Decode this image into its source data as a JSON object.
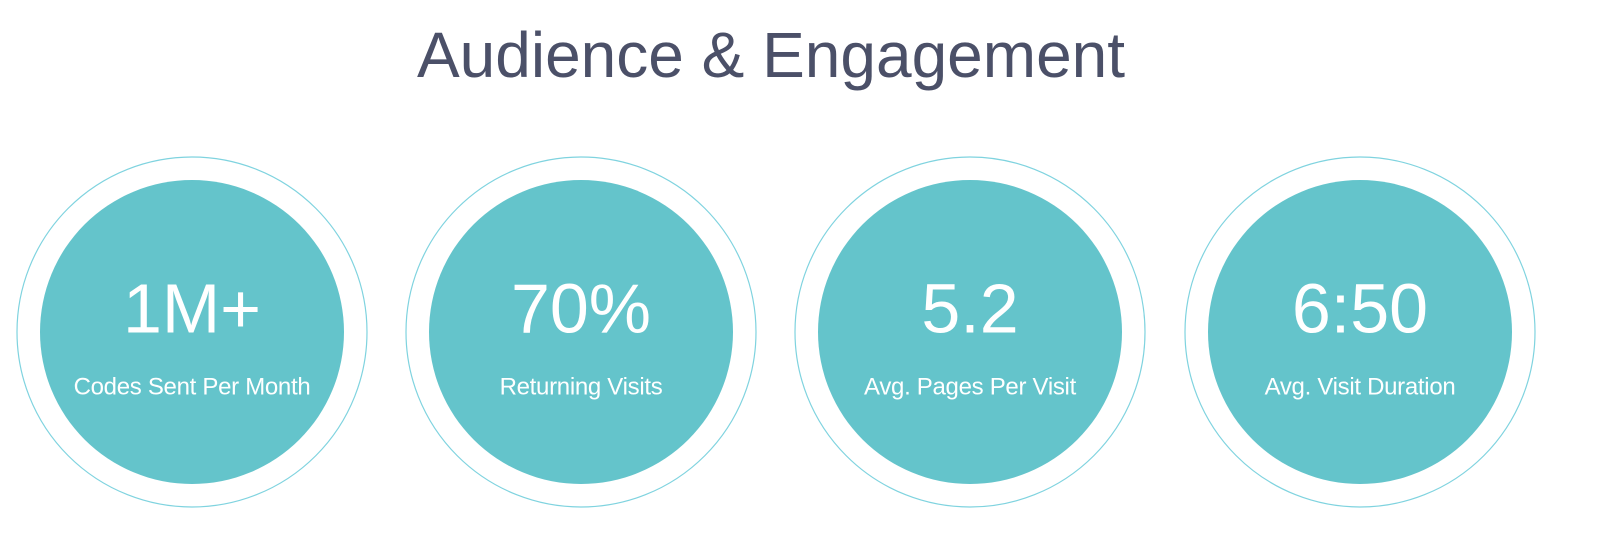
{
  "header": {
    "title": "Audience & Engagement"
  },
  "stats": [
    {
      "value": "1M+",
      "label": "Codes Sent Per Month"
    },
    {
      "value": "70%",
      "label": "Returning Visits"
    },
    {
      "value": "5.2",
      "label": "Avg. Pages Per Visit"
    },
    {
      "value": "6:50",
      "label": "Avg. Visit Duration"
    }
  ]
}
